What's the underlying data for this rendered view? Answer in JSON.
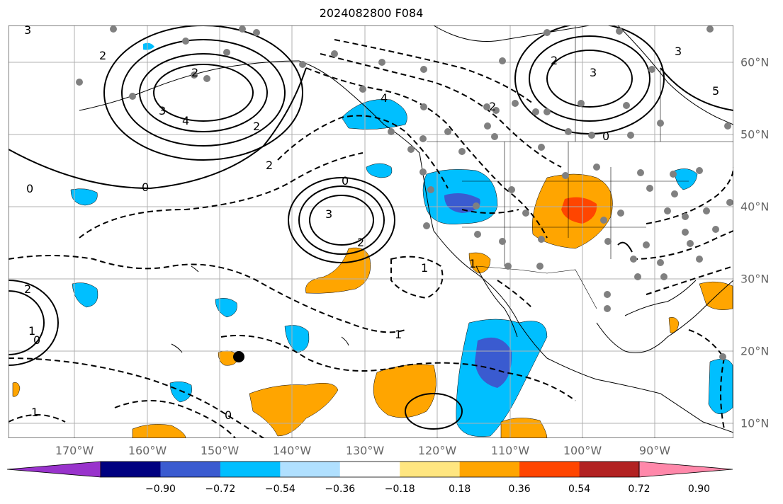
{
  "title": "2024082800 F084",
  "longitude_labels": [
    "170°W",
    "160°W",
    "150°W",
    "140°W",
    "130°W",
    "120°W",
    "110°W",
    "100°W",
    "90°W"
  ],
  "latitude_labels": [
    "60°N",
    "50°N",
    "40°N",
    "30°N",
    "20°N",
    "10°N"
  ],
  "colorbar": {
    "tick_labels": [
      "−0.90",
      "−0.72",
      "−0.54",
      "−0.36",
      "−0.18",
      "0.18",
      "0.36",
      "0.54",
      "0.72",
      "0.90"
    ],
    "colors": [
      "#9933cc",
      "#000080",
      "#3a5bd0",
      "#00bfff",
      "#b0e0ff",
      "#ffffff",
      "#ffe680",
      "#ffa500",
      "#ff4500",
      "#b22222",
      "#ff88aa"
    ]
  },
  "contour_labels": [
    "3",
    "2",
    "3",
    "4",
    "2",
    "0",
    "2",
    "0",
    "3",
    "2",
    "1",
    "2",
    "0",
    "1",
    "0",
    "1",
    "3",
    "2",
    "3",
    "5",
    "0",
    "2",
    "1",
    "2",
    "4",
    "0",
    "1"
  ],
  "colors": {
    "station_marker": "#808080",
    "grid": "#b0b0b0",
    "coast": "#000000"
  }
}
